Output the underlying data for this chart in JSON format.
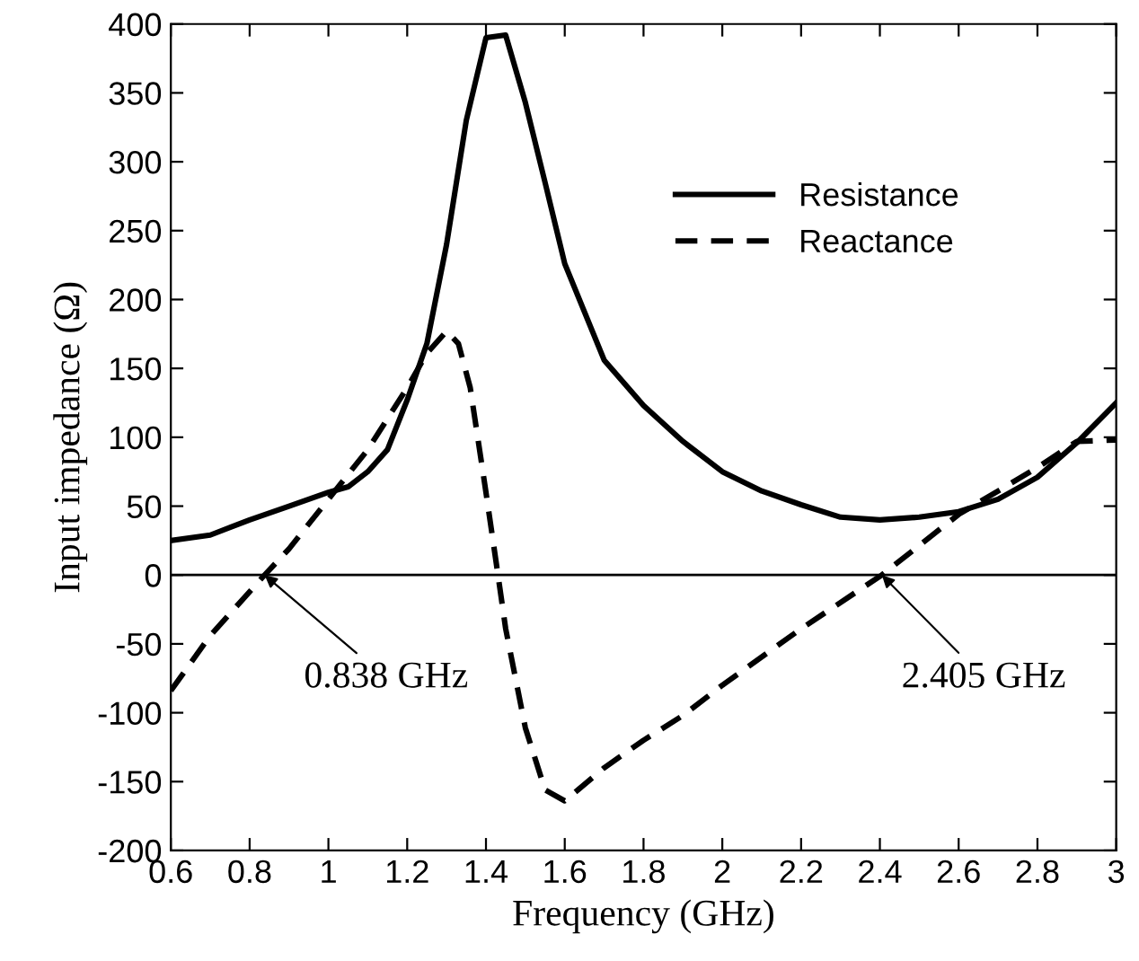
{
  "chart_data": {
    "type": "line",
    "xlabel": "Frequency (GHz)",
    "ylabel": "Input impedance (Ω)",
    "xlim": [
      0.6,
      3
    ],
    "xticks": [
      0.6,
      0.8,
      1,
      1.2,
      1.4,
      1.6,
      1.8,
      2,
      2.2,
      2.4,
      2.6,
      2.8,
      3
    ],
    "ylim": [
      -200,
      400
    ],
    "yticks": [
      -200,
      -150,
      -100,
      -50,
      0,
      50,
      100,
      150,
      200,
      250,
      300,
      350,
      400
    ],
    "grid": false,
    "legend": "top right",
    "marker": "none",
    "ref_lines": [
      {
        "axis": "y",
        "value": 0,
        "color": "#000000",
        "line_style": "solid"
      }
    ],
    "annotations": [
      {
        "text": "0.838 GHz",
        "x": 0.838,
        "y": 0
      },
      {
        "text": "2.405 GHz",
        "x": 2.405,
        "y": 0
      }
    ],
    "series": [
      {
        "name": "Resistance",
        "color": "#000000",
        "line_style": "solid",
        "x": [
          0.6,
          0.7,
          0.8,
          0.9,
          1.0,
          1.05,
          1.1,
          1.15,
          1.2,
          1.25,
          1.3,
          1.35,
          1.4,
          1.45,
          1.5,
          1.55,
          1.6,
          1.7,
          1.8,
          1.9,
          2.0,
          2.1,
          2.2,
          2.3,
          2.4,
          2.5,
          2.6,
          2.7,
          2.8,
          2.9,
          3.0
        ],
        "values": [
          25,
          29,
          40,
          50,
          60,
          64,
          75,
          91,
          127,
          168,
          240,
          330,
          390,
          392,
          343,
          285,
          226,
          156,
          123,
          97,
          75,
          61,
          51,
          42,
          40,
          42,
          46,
          55,
          71,
          96,
          125
        ]
      },
      {
        "name": "Reactance",
        "color": "#000000",
        "line_style": "dashed",
        "x": [
          0.6,
          0.7,
          0.838,
          0.9,
          1.0,
          1.1,
          1.2,
          1.25,
          1.3,
          1.33,
          1.36,
          1.4,
          1.43,
          1.45,
          1.5,
          1.55,
          1.6,
          1.7,
          1.8,
          1.9,
          2.0,
          2.2,
          2.405,
          2.6,
          2.8,
          2.9,
          3.0
        ],
        "values": [
          -84,
          -44,
          0,
          19,
          55,
          91,
          136,
          161,
          177,
          168,
          136,
          60,
          1,
          -39,
          -111,
          -156,
          -164,
          -140,
          -120,
          -102,
          -80,
          -39,
          0,
          44,
          78,
          97,
          98
        ]
      }
    ]
  }
}
